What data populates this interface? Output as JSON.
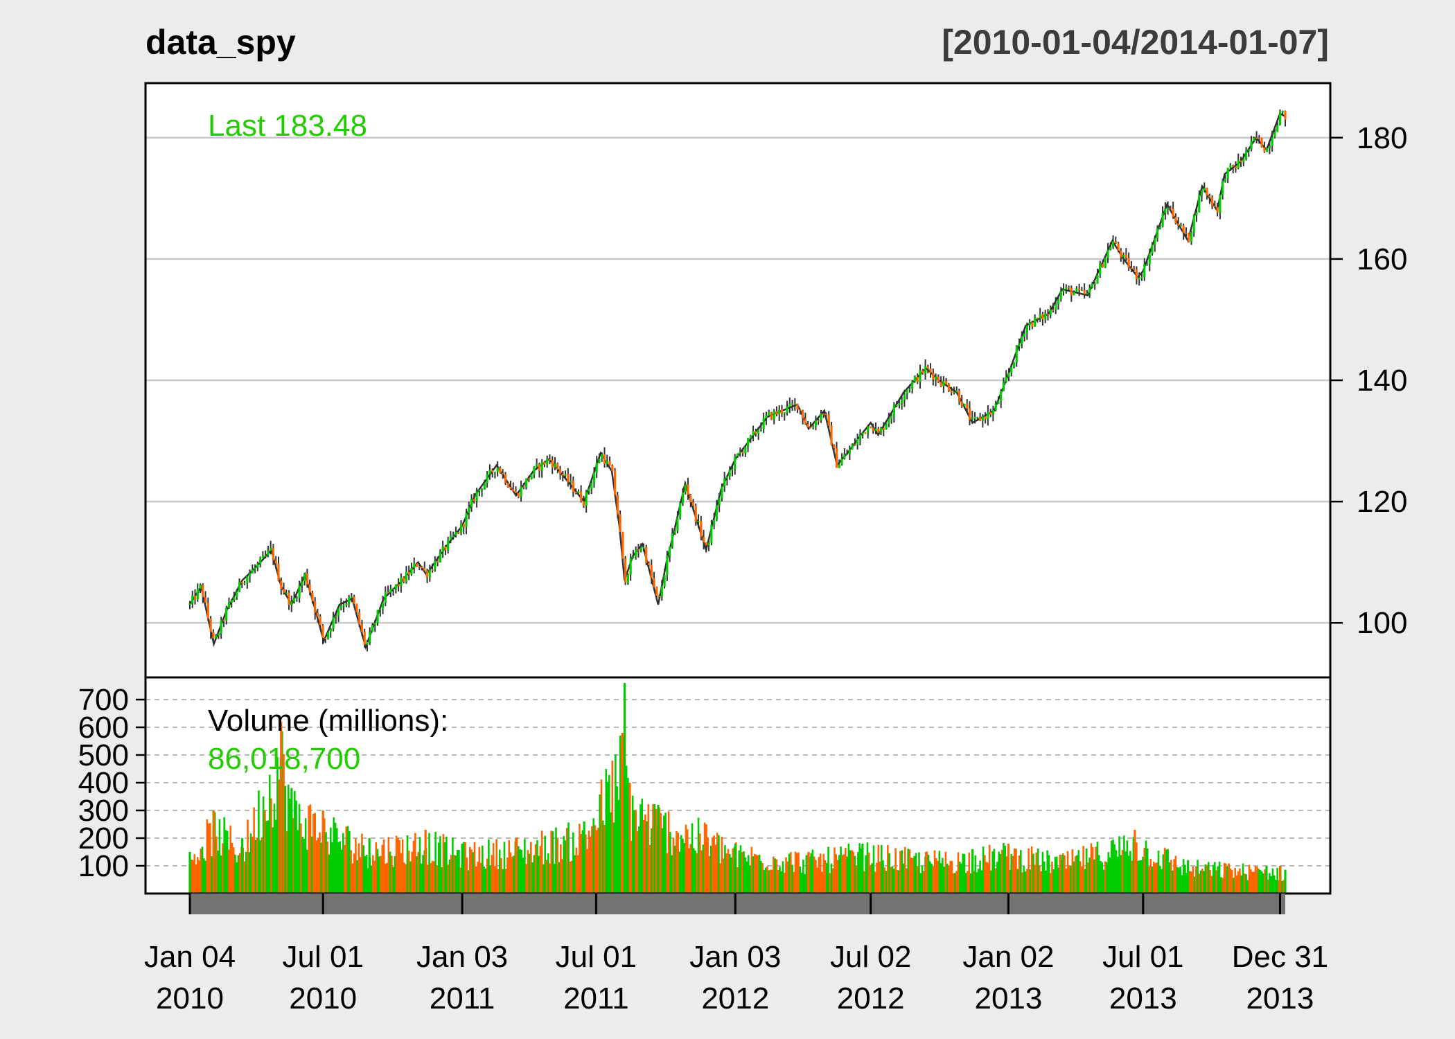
{
  "chart_data": {
    "type": "line",
    "title": "data_spy",
    "date_range_label": "[2010-01-04/2014-01-07]",
    "colors": {
      "up": "#00cc00",
      "down": "#ff6600",
      "wick": "#333333",
      "grid": "#c8c8c8",
      "background": "#ececec",
      "plot_bg": "#ffffff"
    },
    "price_panel": {
      "type": "candlestick",
      "series": [
        {
          "name": "data_spy"
        }
      ],
      "last_label": "Last 183.48",
      "ylim": [
        91,
        189
      ],
      "yticks": [
        100,
        120,
        140,
        160,
        180
      ],
      "grid": true,
      "x": [
        "2010-01-04",
        "2010-01-19",
        "2010-02-05",
        "2010-02-22",
        "2010-03-15",
        "2010-04-01",
        "2010-04-23",
        "2010-05-06",
        "2010-05-20",
        "2010-06-07",
        "2010-06-21",
        "2010-07-02",
        "2010-07-23",
        "2010-08-09",
        "2010-08-27",
        "2010-09-20",
        "2010-10-15",
        "2010-11-05",
        "2010-11-16",
        "2010-12-15",
        "2011-01-03",
        "2011-01-20",
        "2011-02-18",
        "2011-03-16",
        "2011-04-08",
        "2011-04-29",
        "2011-05-13",
        "2011-06-15",
        "2011-07-07",
        "2011-07-22",
        "2011-08-01",
        "2011-08-08",
        "2011-08-19",
        "2011-09-01",
        "2011-09-22",
        "2011-10-03",
        "2011-10-13",
        "2011-10-28",
        "2011-11-25",
        "2011-12-15",
        "2012-01-03",
        "2012-02-15",
        "2012-03-26",
        "2012-04-10",
        "2012-05-01",
        "2012-05-18",
        "2012-06-01",
        "2012-06-19",
        "2012-07-02",
        "2012-07-12",
        "2012-08-15",
        "2012-09-14",
        "2012-10-01",
        "2012-10-25",
        "2012-11-15",
        "2012-12-14",
        "2013-01-02",
        "2013-01-25",
        "2013-02-25",
        "2013-03-15",
        "2013-04-18",
        "2013-05-21",
        "2013-06-05",
        "2013-06-24",
        "2013-07-01",
        "2013-08-02",
        "2013-08-30",
        "2013-09-18",
        "2013-10-08",
        "2013-10-18",
        "2013-11-08",
        "2013-11-29",
        "2013-12-13",
        "2013-12-31",
        "2014-01-07"
      ],
      "close": [
        103,
        106,
        96.5,
        102,
        107,
        109,
        112,
        106,
        103,
        108,
        102,
        97,
        103,
        104,
        96,
        104,
        107,
        110,
        108,
        113,
        116,
        121,
        126,
        121,
        125,
        127,
        125,
        120,
        128,
        125,
        116,
        107,
        111,
        113,
        103,
        110,
        115,
        123,
        112,
        122,
        127,
        134,
        136,
        132,
        135,
        126,
        128,
        131,
        133,
        131,
        138,
        142,
        140,
        138,
        133,
        135,
        141,
        149,
        151,
        155,
        154,
        163,
        160,
        157,
        158,
        169,
        163,
        172,
        168,
        174,
        176,
        180,
        178,
        184,
        183.48
      ]
    },
    "volume_panel": {
      "type": "bar",
      "label": "Volume (millions):",
      "last_value": "86,018,700",
      "ylim": [
        0,
        780
      ],
      "yticks": [
        100,
        200,
        300,
        400,
        500,
        600,
        700
      ],
      "x": [
        "2010-01-04",
        "2010-02-05",
        "2010-03-15",
        "2010-05-06",
        "2010-05-20",
        "2010-07-01",
        "2010-09-01",
        "2010-11-15",
        "2011-01-03",
        "2011-03-16",
        "2011-06-15",
        "2011-08-05",
        "2011-08-08",
        "2011-08-15",
        "2011-09-22",
        "2011-11-25",
        "2012-01-03",
        "2012-04-10",
        "2012-06-21",
        "2012-09-14",
        "2012-11-15",
        "2013-01-02",
        "2013-03-15",
        "2013-06-20",
        "2013-08-30",
        "2013-10-18",
        "2013-12-13",
        "2013-12-31",
        "2014-01-07"
      ],
      "values": [
        150,
        300,
        200,
        620,
        380,
        300,
        200,
        230,
        180,
        200,
        260,
        580,
        760,
        400,
        320,
        250,
        180,
        150,
        180,
        150,
        160,
        180,
        140,
        230,
        120,
        110,
        100,
        100,
        86
      ]
    },
    "x_axis": {
      "ticks": [
        {
          "date": "2010-01-04",
          "line1": "Jan 04",
          "line2": "2010"
        },
        {
          "date": "2010-07-01",
          "line1": "Jul 01",
          "line2": "2010"
        },
        {
          "date": "2011-01-03",
          "line1": "Jan 03",
          "line2": "2011"
        },
        {
          "date": "2011-07-01",
          "line1": "Jul 01",
          "line2": "2011"
        },
        {
          "date": "2012-01-03",
          "line1": "Jan 03",
          "line2": "2012"
        },
        {
          "date": "2012-07-02",
          "line1": "Jul 02",
          "line2": "2012"
        },
        {
          "date": "2013-01-02",
          "line1": "Jan 02",
          "line2": "2013"
        },
        {
          "date": "2013-07-01",
          "line1": "Jul 01",
          "line2": "2013"
        },
        {
          "date": "2013-12-31",
          "line1": "Dec 31",
          "line2": "2013"
        }
      ]
    }
  }
}
